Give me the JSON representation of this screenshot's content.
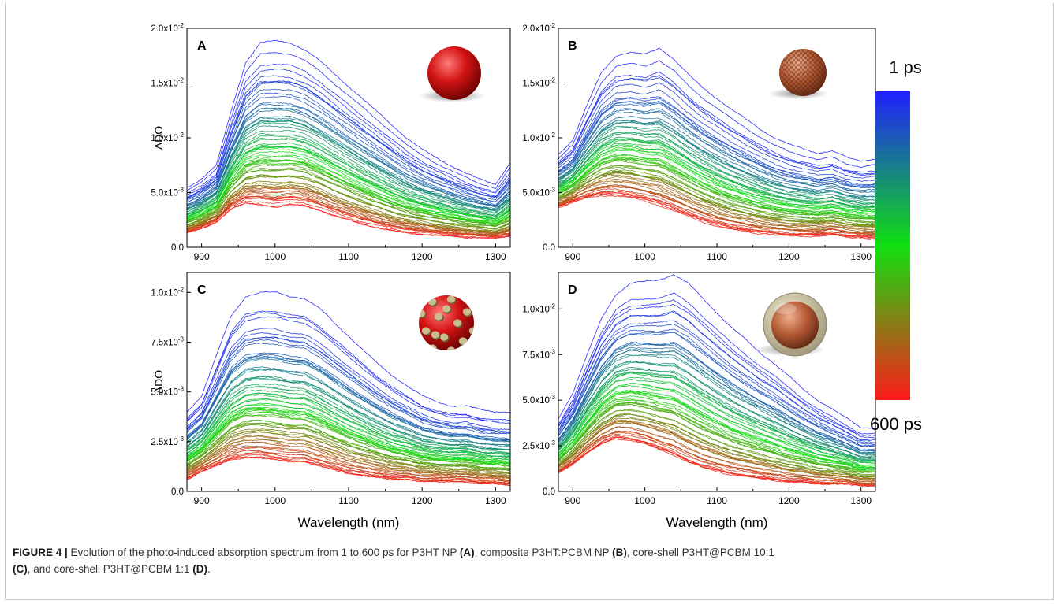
{
  "colors": {
    "early": "#2020ff",
    "mid": "#10e010",
    "late": "#ff1a1a",
    "axis": "#000000"
  },
  "icons": {
    "A": "solid-red-sphere-icon",
    "B": "checkered-sphere-icon",
    "C": "dotted-sphere-icon",
    "D": "core-shell-sphere-icon"
  },
  "colorbar": {
    "top_label": "1 ps",
    "bottom_label": "600 ps"
  },
  "caption": {
    "figure_label": "FIGURE 4 |",
    "text1": " Evolution of the photo-induced absorption spectrum from 1 to 600 ps for P3HT NP ",
    "ref_a": "(A)",
    "text2": ", composite P3HT:PCBM NP ",
    "ref_b": "(B)",
    "text3": ", core-shell P3HT@PCBM 10:1 ",
    "ref_c": "(C)",
    "text4": ", and core-shell P3HT@PCBM 1:1 ",
    "ref_d": "(D)",
    "text5": "."
  },
  "chart_data": [
    {
      "type": "line",
      "panel": "A",
      "xlabel": "",
      "ylabel": "ΔDO",
      "xlim": [
        880,
        1320
      ],
      "ylim": [
        0,
        0.02
      ],
      "xticks": [
        900,
        1000,
        1100,
        1200,
        1300
      ],
      "yticks": [
        0,
        0.005,
        0.01,
        0.015,
        0.02
      ],
      "ytick_labels": [
        "0.0",
        "5.0x10-3",
        "1.0x10-2",
        "1.5x10-2",
        "2.0x10-2"
      ],
      "x": [
        880,
        900,
        920,
        940,
        960,
        980,
        1000,
        1020,
        1040,
        1060,
        1080,
        1100,
        1120,
        1140,
        1160,
        1180,
        1200,
        1220,
        1240,
        1260,
        1280,
        1300,
        1320
      ],
      "series": [
        {
          "time": "1 ps",
          "values": [
            0.0055,
            0.0063,
            0.0075,
            0.0125,
            0.017,
            0.0188,
            0.019,
            0.0188,
            0.0182,
            0.0172,
            0.016,
            0.0148,
            0.0136,
            0.0124,
            0.0112,
            0.01,
            0.009,
            0.0082,
            0.0075,
            0.0068,
            0.0062,
            0.0058,
            0.0078
          ]
        },
        {
          "time": "600 ps",
          "values": [
            0.0013,
            0.0017,
            0.0023,
            0.0035,
            0.004,
            0.0039,
            0.0037,
            0.0039,
            0.0038,
            0.0034,
            0.0029,
            0.0025,
            0.0021,
            0.0018,
            0.0015,
            0.0013,
            0.0012,
            0.0011,
            0.001,
            0.0009,
            0.0009,
            0.0008,
            0.001
          ]
        }
      ]
    },
    {
      "type": "line",
      "panel": "B",
      "xlabel": "",
      "ylabel": "",
      "xlim": [
        880,
        1320
      ],
      "ylim": [
        0,
        0.02
      ],
      "xticks": [
        900,
        1000,
        1100,
        1200,
        1300
      ],
      "yticks": [
        0,
        0.005,
        0.01,
        0.015,
        0.02
      ],
      "ytick_labels": [
        "0.0",
        "5.0x10-3",
        "1.0x10-2",
        "1.5x10-2",
        "2.0x10-2"
      ],
      "x": [
        880,
        900,
        920,
        940,
        960,
        980,
        1000,
        1020,
        1040,
        1060,
        1080,
        1100,
        1120,
        1140,
        1160,
        1180,
        1200,
        1220,
        1240,
        1260,
        1280,
        1300,
        1320
      ],
      "series": [
        {
          "time": "1 ps",
          "values": [
            0.0085,
            0.0098,
            0.013,
            0.016,
            0.0175,
            0.0178,
            0.0176,
            0.0182,
            0.0172,
            0.0158,
            0.0146,
            0.0136,
            0.0126,
            0.0117,
            0.0108,
            0.01,
            0.0094,
            0.009,
            0.0086,
            0.0088,
            0.0082,
            0.0079,
            0.0081
          ]
        },
        {
          "time": "600 ps",
          "values": [
            0.0036,
            0.0041,
            0.0045,
            0.0047,
            0.0047,
            0.0045,
            0.0042,
            0.0038,
            0.0033,
            0.0028,
            0.0023,
            0.0019,
            0.0016,
            0.0014,
            0.0012,
            0.0011,
            0.001,
            0.001,
            0.001,
            0.0011,
            0.0009,
            0.0008,
            0.0007
          ]
        }
      ]
    },
    {
      "type": "line",
      "panel": "C",
      "xlabel": "Wavelength (nm)",
      "ylabel": "ΔDO",
      "xlim": [
        880,
        1320
      ],
      "ylim": [
        0,
        0.011
      ],
      "xticks": [
        900,
        1000,
        1100,
        1200,
        1300
      ],
      "yticks": [
        0,
        0.0025,
        0.005,
        0.0075,
        0.01
      ],
      "ytick_labels": [
        "0.0",
        "2.5x10-3",
        "5.0x10-3",
        "7.5x10-3",
        "1.0x10-2"
      ],
      "x": [
        880,
        900,
        920,
        940,
        960,
        980,
        1000,
        1020,
        1040,
        1060,
        1080,
        1100,
        1120,
        1140,
        1160,
        1180,
        1200,
        1220,
        1240,
        1260,
        1280,
        1300,
        1320
      ],
      "series": [
        {
          "time": "1 ps",
          "values": [
            0.004,
            0.0048,
            0.0068,
            0.0088,
            0.0098,
            0.01,
            0.01,
            0.0098,
            0.0097,
            0.0092,
            0.0085,
            0.0078,
            0.0071,
            0.0064,
            0.0058,
            0.0053,
            0.0048,
            0.0045,
            0.0043,
            0.0043,
            0.0041,
            0.004,
            0.004
          ]
        },
        {
          "time": "600 ps",
          "values": [
            0.0006,
            0.001,
            0.0013,
            0.0016,
            0.0017,
            0.0017,
            0.0016,
            0.0015,
            0.0015,
            0.0013,
            0.0011,
            0.0009,
            0.0008,
            0.0007,
            0.0006,
            0.0006,
            0.0005,
            0.0005,
            0.0005,
            0.0005,
            0.0004,
            0.0004,
            0.0003
          ]
        }
      ]
    },
    {
      "type": "line",
      "panel": "D",
      "xlabel": "Wavelength (nm)",
      "ylabel": "",
      "xlim": [
        880,
        1320
      ],
      "ylim": [
        0,
        0.012
      ],
      "xticks": [
        900,
        1000,
        1100,
        1200,
        1300
      ],
      "yticks": [
        0,
        0.0025,
        0.005,
        0.0075,
        0.01
      ],
      "ytick_labels": [
        "0.0",
        "2.5x10-3",
        "5.0x10-3",
        "7.5x10-3",
        "1.0x10-2"
      ],
      "x": [
        880,
        900,
        920,
        940,
        960,
        980,
        1000,
        1020,
        1040,
        1060,
        1080,
        1100,
        1120,
        1140,
        1160,
        1180,
        1200,
        1220,
        1240,
        1260,
        1280,
        1300,
        1320
      ],
      "series": [
        {
          "time": "1 ps",
          "values": [
            0.004,
            0.0054,
            0.0075,
            0.0095,
            0.0108,
            0.0114,
            0.0115,
            0.0116,
            0.0119,
            0.0114,
            0.0106,
            0.0098,
            0.009,
            0.0083,
            0.0076,
            0.007,
            0.0063,
            0.0056,
            0.005,
            0.0045,
            0.004,
            0.0035,
            0.0035
          ]
        },
        {
          "time": "600 ps",
          "values": [
            0.001,
            0.0015,
            0.0021,
            0.0026,
            0.0029,
            0.0028,
            0.0026,
            0.0023,
            0.002,
            0.0016,
            0.0013,
            0.0011,
            0.0009,
            0.0008,
            0.0007,
            0.0006,
            0.0005,
            0.0005,
            0.0004,
            0.0004,
            0.0004,
            0.0003,
            0.0003
          ]
        }
      ]
    }
  ]
}
